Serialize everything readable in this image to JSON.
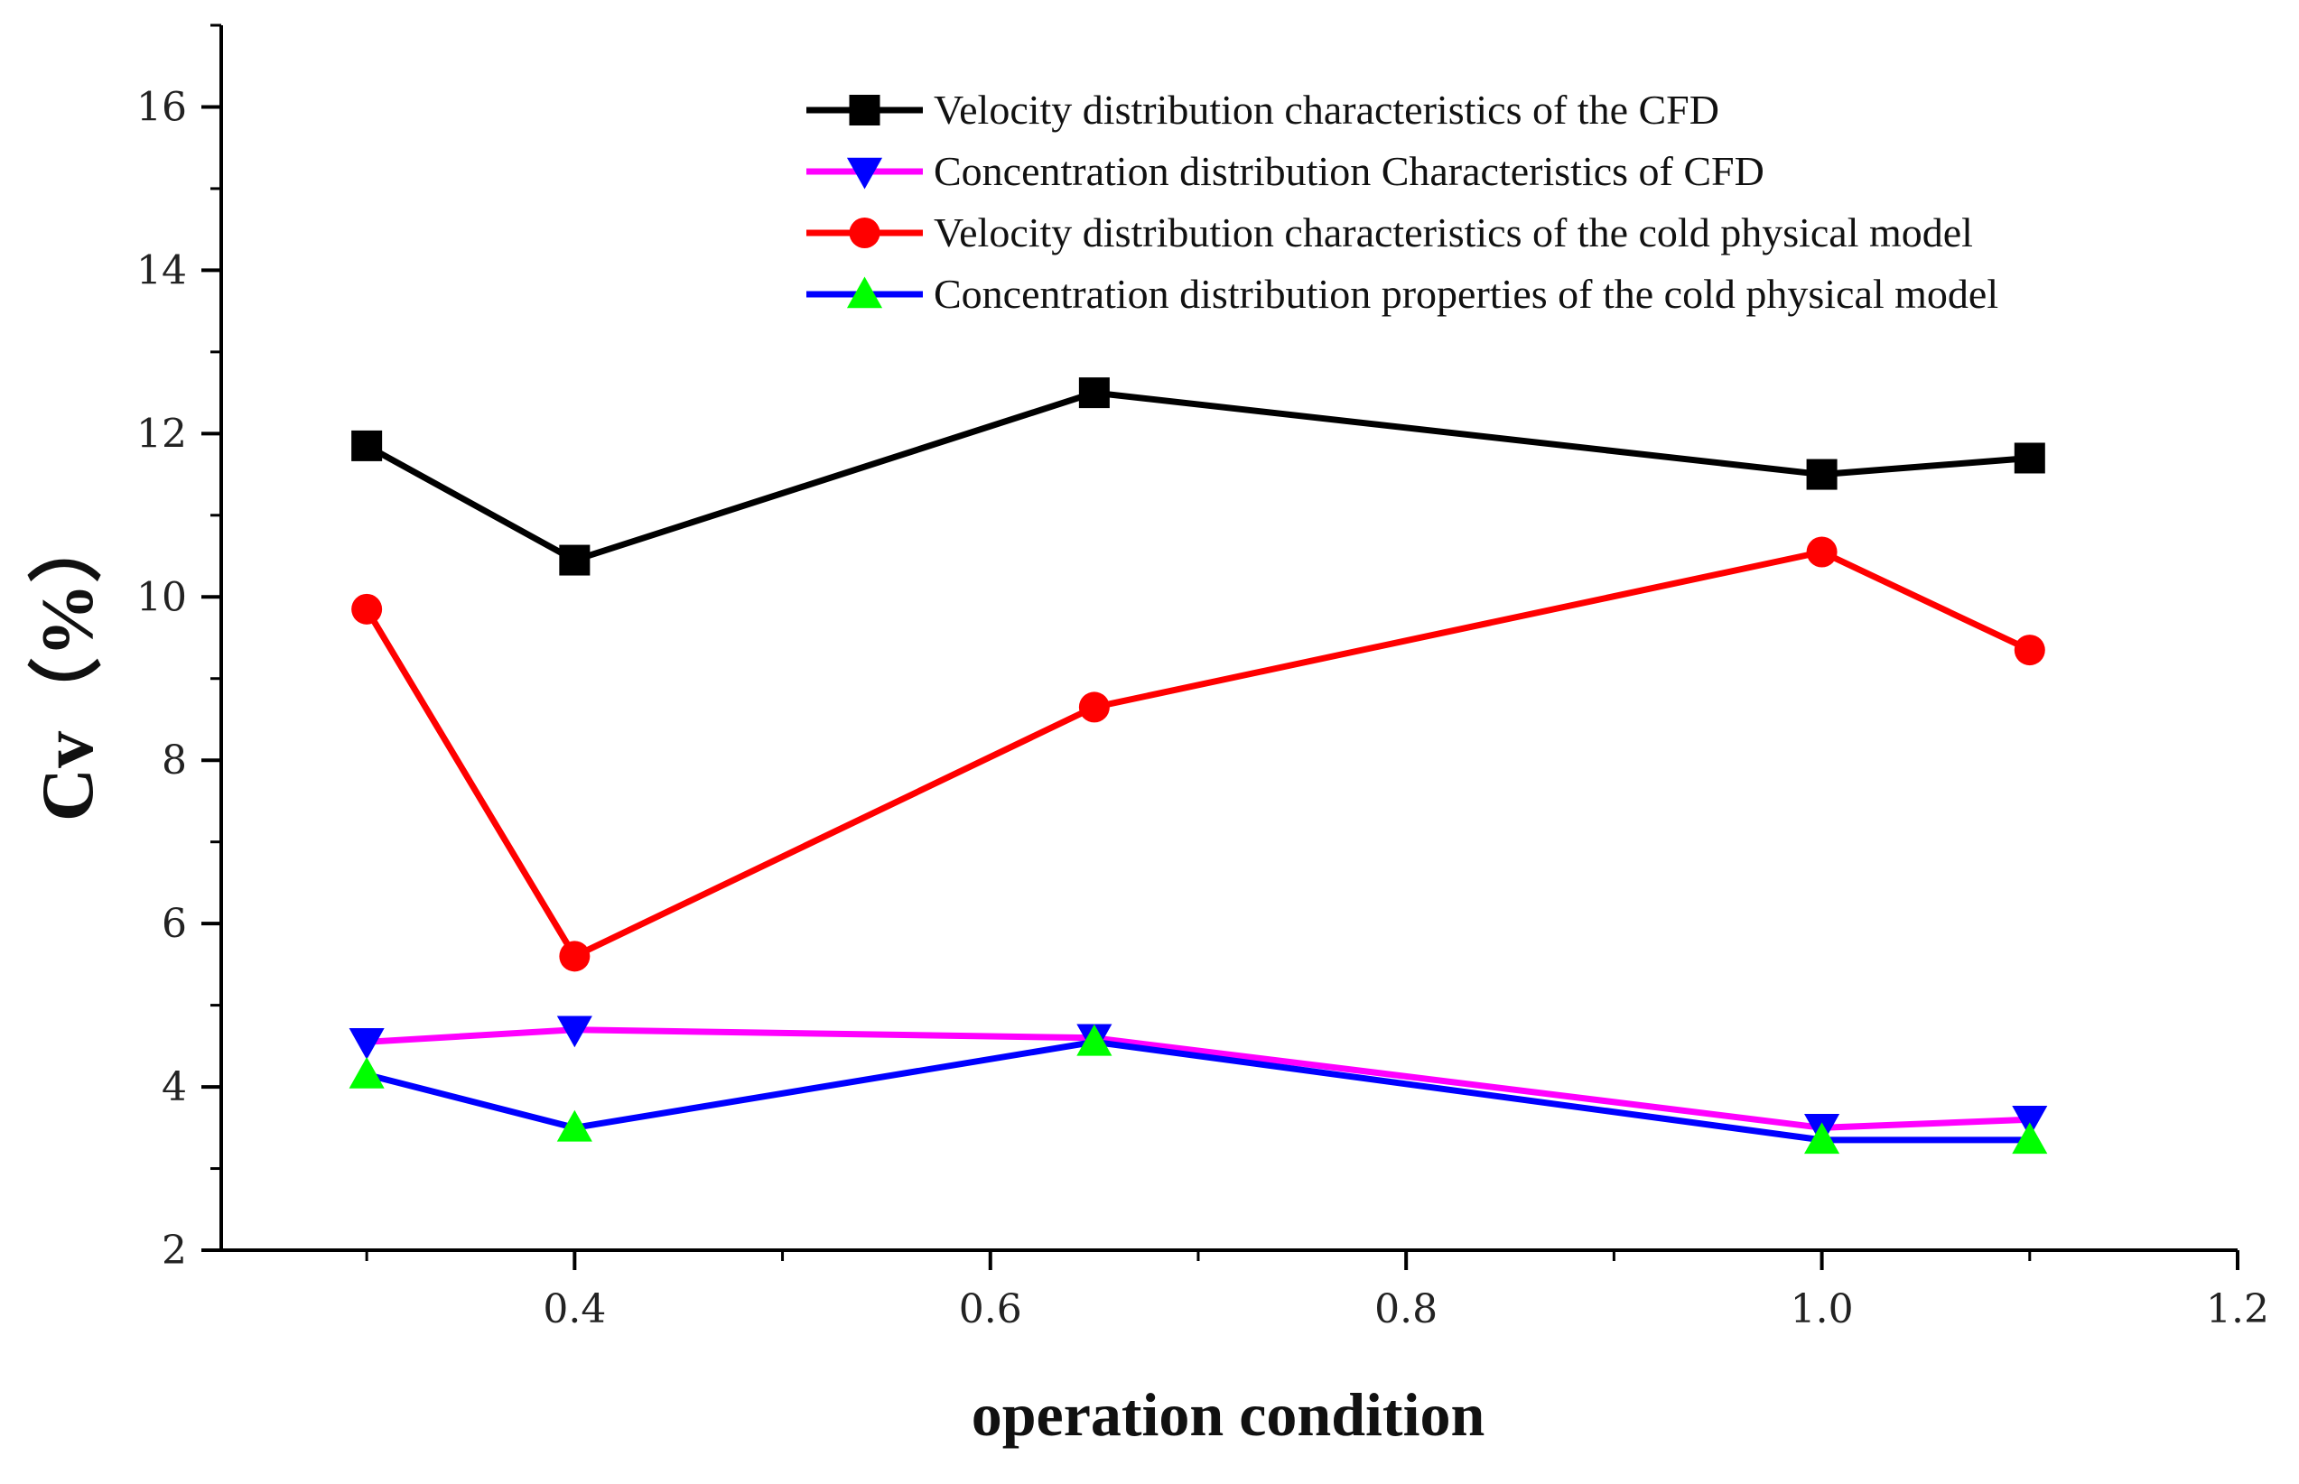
{
  "chart_data": {
    "type": "line",
    "title": "",
    "xlabel": "operation condition",
    "ylabel": "Cv（%）",
    "xlim": [
      0.23,
      1.2
    ],
    "ylim": [
      2,
      17
    ],
    "x_ticks": [
      0.4,
      0.6,
      0.8,
      1.0,
      1.2
    ],
    "x_tick_labels": [
      "0.4",
      "0.6",
      "0.8",
      "1.0",
      "1.2"
    ],
    "y_ticks": [
      2,
      4,
      6,
      8,
      10,
      12,
      14,
      16
    ],
    "y_tick_labels": [
      "2",
      "4",
      "6",
      "8",
      "10",
      "12",
      "14",
      "16"
    ],
    "grid": false,
    "legend_position": "top-right",
    "x": [
      0.3,
      0.4,
      0.65,
      1.0,
      1.1
    ],
    "series": [
      {
        "name": "Velocity distribution characteristics of the CFD",
        "values": [
          11.85,
          10.45,
          12.5,
          11.5,
          11.7
        ],
        "color": "#000000",
        "marker": "square",
        "marker_color": "#000000"
      },
      {
        "name": "Concentration distribution Characteristics of CFD",
        "values": [
          4.55,
          4.7,
          4.6,
          3.5,
          3.6
        ],
        "color": "#ff00ff",
        "marker": "triangle-down",
        "marker_color": "#0000ff"
      },
      {
        "name": "Velocity distribution characteristics of the cold physical model",
        "values": [
          9.85,
          5.6,
          8.65,
          10.55,
          9.35
        ],
        "color": "#ff0000",
        "marker": "circle",
        "marker_color": "#ff0000"
      },
      {
        "name": "Concentration distribution properties of the cold physical model",
        "values": [
          4.15,
          3.5,
          4.55,
          3.35,
          3.35
        ],
        "color": "#0000ff",
        "marker": "triangle-up",
        "marker_color": "#00ff00"
      }
    ]
  }
}
